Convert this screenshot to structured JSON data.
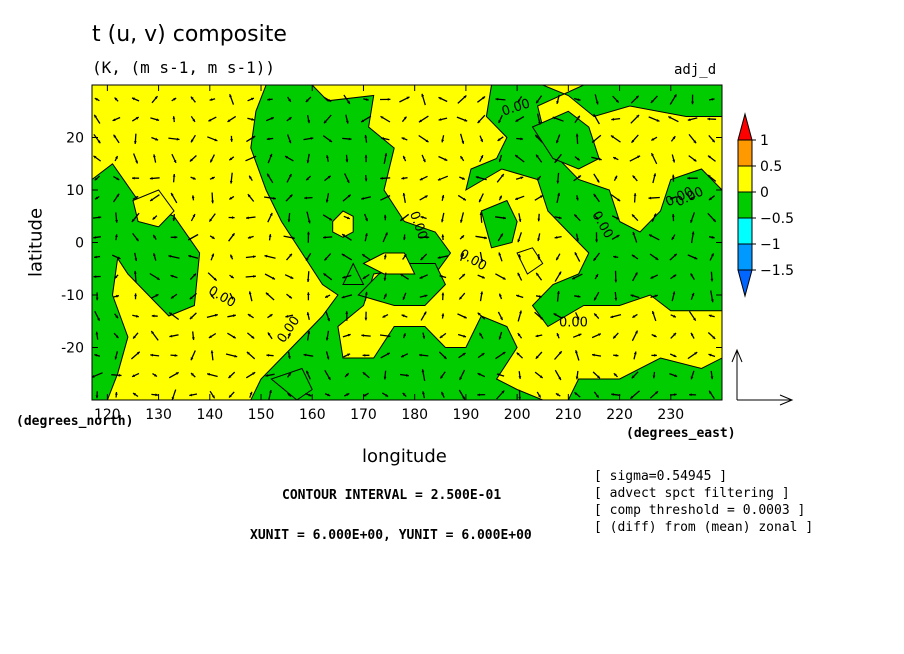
{
  "title": "t (u, v) composite",
  "subtitle": "(K, (m s-1, m s-1))",
  "tag": "adj_d",
  "xunit_name": "(degrees_east)",
  "yunit_name": "(degrees_north)",
  "contour_interval": "CONTOUR INTERVAL = 2.500E-01",
  "xy_units": "XUNIT = 6.000E+00, YUNIT = 6.000E+00",
  "notes": [
    "[ sigma=0.54945 ]",
    "[ advect spct filtering ]",
    "[ comp threshold = 0.0003 ]",
    "[ (diff) from (mean) zonal ]"
  ],
  "colors": {
    "yellow": "#ffff00",
    "green": "#00cc00",
    "orange": "#ff9900",
    "red": "#ff0000",
    "cyan": "#00ffff",
    "blue": "#0099ff",
    "darkblue": "#0066ff"
  },
  "chart_data": {
    "type": "heatmap",
    "title": "t (u, v) composite",
    "subtitle": "(K, (m s-1, m s-1))",
    "xlabel": "longitude",
    "ylabel": "latitude",
    "xlim": [
      117,
      240
    ],
    "ylim": [
      -30,
      30
    ],
    "xticks": [
      120,
      130,
      140,
      150,
      160,
      170,
      180,
      190,
      200,
      210,
      220,
      230
    ],
    "yticks": [
      -20,
      -10,
      0,
      10,
      20
    ],
    "contour_labels": [
      "0.00",
      "0.00",
      "0.00",
      "0.00",
      "0.00",
      "0.00",
      "0.00",
      "0.00",
      "0.00"
    ],
    "colorbar": {
      "levels": [
        1,
        0.5,
        0,
        -0.5,
        -1,
        -1.5
      ],
      "colors": [
        "#ff0000",
        "#ff9900",
        "#ffff00",
        "#00cc00",
        "#00ffff",
        "#0099ff",
        "#0066ff"
      ]
    },
    "regions_negative_green": [
      {
        "lon": [
          117,
          128
        ],
        "lat": [
          -30,
          15
        ]
      },
      {
        "lon": [
          125,
          140
        ],
        "lat": [
          -15,
          8
        ]
      },
      {
        "lon": [
          160,
          200
        ],
        "lat": [
          -30,
          -15
        ]
      },
      {
        "lon": [
          175,
          200
        ],
        "lat": [
          -15,
          0
        ]
      },
      {
        "lon": [
          190,
          240
        ],
        "lat": [
          10,
          30
        ]
      },
      {
        "lon": [
          215,
          240
        ],
        "lat": [
          -15,
          10
        ]
      }
    ]
  }
}
